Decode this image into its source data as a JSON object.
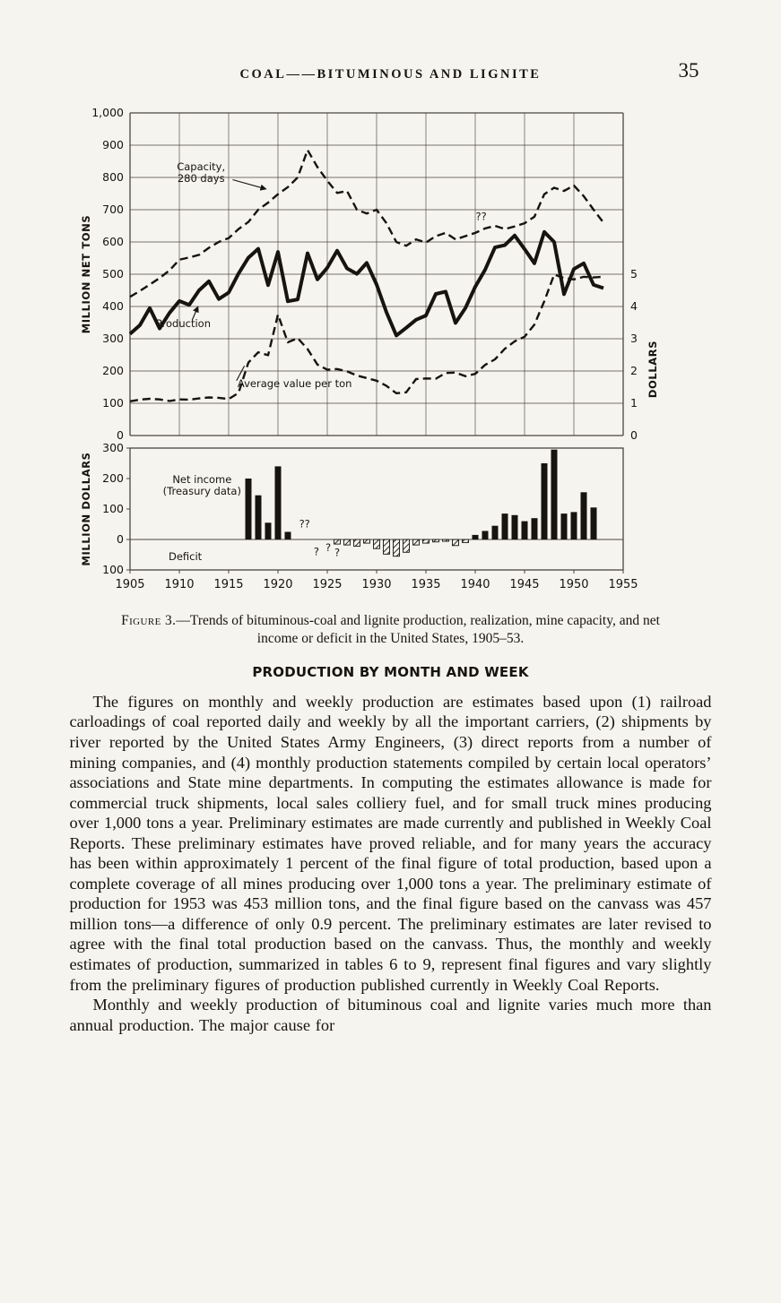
{
  "page": {
    "header_title": "COAL——BITUMINOUS AND LIGNITE",
    "page_number": "35"
  },
  "figure": {
    "caption_label": "Figure 3.",
    "caption_text": "—Trends of bituminous-coal and lignite production, realization, mine capacity, and net income or deficit in the United States, 1905–53."
  },
  "section": {
    "heading": "PRODUCTION BY MONTH AND WEEK",
    "paragraphs": [
      "The figures on monthly and weekly production are estimates based upon (1) railroad carloadings of coal reported daily and weekly by all the important carriers, (2) shipments by river reported by the United States Army Engineers, (3) direct reports from a number of mining companies, and (4) monthly production statements compiled by certain local operators’ associations and State mine departments.  In computing the estimates allowance is made for commercial truck shipments, local sales colliery fuel, and for small truck mines producing over 1,000 tons a year.  Preliminary estimates are made currently and published in Weekly Coal Reports.  These preliminary estimates have proved reliable, and for many years the accuracy has been within approximately 1 percent of the final figure of total production, based upon a complete coverage of all mines producing over 1,000 tons a year.  The preliminary estimate of production for 1953 was 453 million tons, and the final figure based on the canvass was 457 million tons—a difference of only 0.9 percent.  The preliminary estimates are later revised to agree with the final total production based on the canvass.  Thus, the monthly and weekly estimates of production, summarized in tables 6 to 9, represent final figures and vary slightly from the preliminary figures of production published currently in Weekly Coal Reports.",
      "Monthly and weekly production of bituminous coal and lignite varies much more than annual production.  The major cause for"
    ]
  },
  "chart_data": {
    "type": "multi-panel",
    "xlim": [
      1905,
      1955
    ],
    "xticks": [
      "1905",
      "1910",
      "1915",
      "1920",
      "1925",
      "1930",
      "1935",
      "1940",
      "1945",
      "1950",
      "1955"
    ],
    "panels": [
      {
        "type": "line",
        "ylabel_left": "MILLION NET TONS",
        "ylabel_right": "DOLLARS",
        "ylim": [
          0,
          1000
        ],
        "ylim_right": [
          0,
          5
        ],
        "yticks_left": [
          "0",
          "100",
          "200",
          "300",
          "400",
          "500",
          "600",
          "700",
          "800",
          "900",
          "1,000"
        ],
        "yticks_right": [
          "0",
          "1",
          "2",
          "3",
          "4",
          "5"
        ],
        "grid": true,
        "series": [
          {
            "name": "Capacity, 280 days",
            "style": "dashed",
            "scale": "tons",
            "points": [
              [
                1905,
                430
              ],
              [
                1906,
                448
              ],
              [
                1907,
                468
              ],
              [
                1908,
                488
              ],
              [
                1909,
                512
              ],
              [
                1910,
                545
              ],
              [
                1911,
                552
              ],
              [
                1912,
                560
              ],
              [
                1913,
                582
              ],
              [
                1914,
                600
              ],
              [
                1915,
                612
              ],
              [
                1916,
                640
              ],
              [
                1917,
                662
              ],
              [
                1918,
                700
              ],
              [
                1919,
                722
              ],
              [
                1920,
                748
              ],
              [
                1921,
                770
              ],
              [
                1922,
                800
              ],
              [
                1923,
                885
              ],
              [
                1924,
                832
              ],
              [
                1925,
                790
              ],
              [
                1926,
                752
              ],
              [
                1927,
                758
              ],
              [
                1928,
                700
              ],
              [
                1929,
                688
              ],
              [
                1930,
                700
              ],
              [
                1931,
                658
              ],
              [
                1932,
                600
              ],
              [
                1933,
                588
              ],
              [
                1934,
                608
              ],
              [
                1935,
                598
              ],
              [
                1936,
                618
              ],
              [
                1937,
                628
              ],
              [
                1938,
                608
              ],
              [
                1939,
                618
              ],
              [
                1940,
                628
              ],
              [
                1941,
                642
              ],
              [
                1942,
                650
              ],
              [
                1943,
                640
              ],
              [
                1944,
                648
              ],
              [
                1945,
                658
              ],
              [
                1946,
                678
              ],
              [
                1947,
                748
              ],
              [
                1948,
                768
              ],
              [
                1949,
                758
              ],
              [
                1950,
                775
              ],
              [
                1951,
                742
              ],
              [
                1952,
                700
              ],
              [
                1953,
                660
              ]
            ]
          },
          {
            "name": "Production",
            "style": "thick_solid",
            "scale": "tons",
            "points": [
              [
                1905,
                315
              ],
              [
                1906,
                342
              ],
              [
                1907,
                395
              ],
              [
                1908,
                332
              ],
              [
                1909,
                380
              ],
              [
                1910,
                417
              ],
              [
                1911,
                405
              ],
              [
                1912,
                450
              ],
              [
                1913,
                478
              ],
              [
                1914,
                423
              ],
              [
                1915,
                443
              ],
              [
                1916,
                502
              ],
              [
                1917,
                551
              ],
              [
                1918,
                579
              ],
              [
                1919,
                466
              ],
              [
                1920,
                569
              ],
              [
                1921,
                416
              ],
              [
                1922,
                422
              ],
              [
                1923,
                565
              ],
              [
                1924,
                484
              ],
              [
                1925,
                520
              ],
              [
                1926,
                573
              ],
              [
                1927,
                518
              ],
              [
                1928,
                501
              ],
              [
                1929,
                535
              ],
              [
                1930,
                468
              ],
              [
                1931,
                382
              ],
              [
                1932,
                310
              ],
              [
                1933,
                334
              ],
              [
                1934,
                359
              ],
              [
                1935,
                372
              ],
              [
                1936,
                439
              ],
              [
                1937,
                446
              ],
              [
                1938,
                349
              ],
              [
                1939,
                395
              ],
              [
                1940,
                461
              ],
              [
                1941,
                514
              ],
              [
                1942,
                583
              ],
              [
                1943,
                590
              ],
              [
                1944,
                620
              ],
              [
                1945,
                578
              ],
              [
                1946,
                534
              ],
              [
                1947,
                631
              ],
              [
                1948,
                600
              ],
              [
                1949,
                438
              ],
              [
                1950,
                516
              ],
              [
                1951,
                534
              ],
              [
                1952,
                467
              ],
              [
                1953,
                457
              ]
            ]
          },
          {
            "name": "Average value per ton",
            "style": "dashed",
            "scale": "dollars",
            "points": [
              [
                1905,
                1.06
              ],
              [
                1906,
                1.11
              ],
              [
                1907,
                1.14
              ],
              [
                1908,
                1.12
              ],
              [
                1909,
                1.07
              ],
              [
                1910,
                1.12
              ],
              [
                1911,
                1.11
              ],
              [
                1912,
                1.15
              ],
              [
                1913,
                1.18
              ],
              [
                1914,
                1.17
              ],
              [
                1915,
                1.13
              ],
              [
                1916,
                1.32
              ],
              [
                1917,
                2.26
              ],
              [
                1918,
                2.58
              ],
              [
                1919,
                2.49
              ],
              [
                1920,
                3.75
              ],
              [
                1921,
                2.89
              ],
              [
                1922,
                3.02
              ],
              [
                1923,
                2.68
              ],
              [
                1924,
                2.2
              ],
              [
                1925,
                2.04
              ],
              [
                1926,
                2.06
              ],
              [
                1927,
                1.99
              ],
              [
                1928,
                1.86
              ],
              [
                1929,
                1.78
              ],
              [
                1930,
                1.7
              ],
              [
                1931,
                1.54
              ],
              [
                1932,
                1.31
              ],
              [
                1933,
                1.34
              ],
              [
                1934,
                1.75
              ],
              [
                1935,
                1.77
              ],
              [
                1936,
                1.76
              ],
              [
                1937,
                1.94
              ],
              [
                1938,
                1.95
              ],
              [
                1939,
                1.84
              ],
              [
                1940,
                1.91
              ],
              [
                1941,
                2.19
              ],
              [
                1942,
                2.36
              ],
              [
                1943,
                2.69
              ],
              [
                1944,
                2.92
              ],
              [
                1945,
                3.06
              ],
              [
                1946,
                3.44
              ],
              [
                1947,
                4.16
              ],
              [
                1948,
                4.99
              ],
              [
                1949,
                4.88
              ],
              [
                1950,
                4.84
              ],
              [
                1951,
                4.92
              ],
              [
                1952,
                4.9
              ],
              [
                1953,
                4.92
              ]
            ]
          }
        ],
        "annotations": [
          {
            "lines": [
              "Capacity,",
              "280 days"
            ],
            "year": 1912.2,
            "value": 822,
            "anchor": "middle",
            "leader_from": [
              1915.4,
              793
            ],
            "leader_to": [
              1918.8,
              764
            ],
            "arrow": true
          },
          {
            "lines": [
              "Production"
            ],
            "year": 1910.4,
            "value": 336,
            "anchor": "middle",
            "leader_from": [
              1911.3,
              358
            ],
            "leader_to": [
              1911.9,
              400
            ],
            "arrow": true
          },
          {
            "lines": [
              "Average value per ton"
            ],
            "year": 1915.9,
            "value": 150,
            "anchor": "start",
            "leader_from": [
              1915.8,
              170
            ],
            "leader_to": [
              1916.6,
              216
            ],
            "arrow": false
          },
          {
            "lines": [
              "??"
            ],
            "year": 1940.6,
            "value": 668,
            "anchor": "middle"
          }
        ]
      },
      {
        "type": "bar",
        "ylabel": "MILLION DOLLARS",
        "ylim": [
          -100,
          300
        ],
        "yticks": [
          "300",
          "200",
          "100",
          "0",
          "100"
        ],
        "bars": [
          [
            1917,
            200
          ],
          [
            1918,
            145
          ],
          [
            1919,
            55
          ],
          [
            1920,
            240
          ],
          [
            1921,
            25
          ],
          [
            1926,
            -15
          ],
          [
            1927,
            -18
          ],
          [
            1928,
            -22
          ],
          [
            1929,
            -12
          ],
          [
            1930,
            -30
          ],
          [
            1931,
            -48
          ],
          [
            1932,
            -55
          ],
          [
            1933,
            -42
          ],
          [
            1934,
            -18
          ],
          [
            1935,
            -12
          ],
          [
            1936,
            -8
          ],
          [
            1937,
            -6
          ],
          [
            1938,
            -20
          ],
          [
            1939,
            -10
          ],
          [
            1940,
            15
          ],
          [
            1941,
            28
          ],
          [
            1942,
            45
          ],
          [
            1943,
            85
          ],
          [
            1944,
            80
          ],
          [
            1945,
            60
          ],
          [
            1946,
            70
          ],
          [
            1947,
            250
          ],
          [
            1948,
            295
          ],
          [
            1949,
            85
          ],
          [
            1950,
            90
          ],
          [
            1951,
            155
          ],
          [
            1952,
            105
          ]
        ],
        "annotations": [
          {
            "lines": [
              "Net income",
              "(Treasury data)"
            ],
            "year": 1912.3,
            "value": 185,
            "anchor": "middle"
          },
          {
            "lines": [
              "Deficit"
            ],
            "year": 1910.6,
            "value": -68,
            "anchor": "middle"
          },
          {
            "lines": [
              "??"
            ],
            "year": 1922.7,
            "value": 40,
            "anchor": "middle"
          },
          {
            "lines": [
              "?"
            ],
            "year": 1923.9,
            "value": -52,
            "anchor": "middle"
          },
          {
            "lines": [
              "?"
            ],
            "year": 1925.1,
            "value": -38,
            "anchor": "middle"
          },
          {
            "lines": [
              "?"
            ],
            "year": 1926.0,
            "value": -55,
            "anchor": "middle"
          }
        ]
      }
    ]
  }
}
